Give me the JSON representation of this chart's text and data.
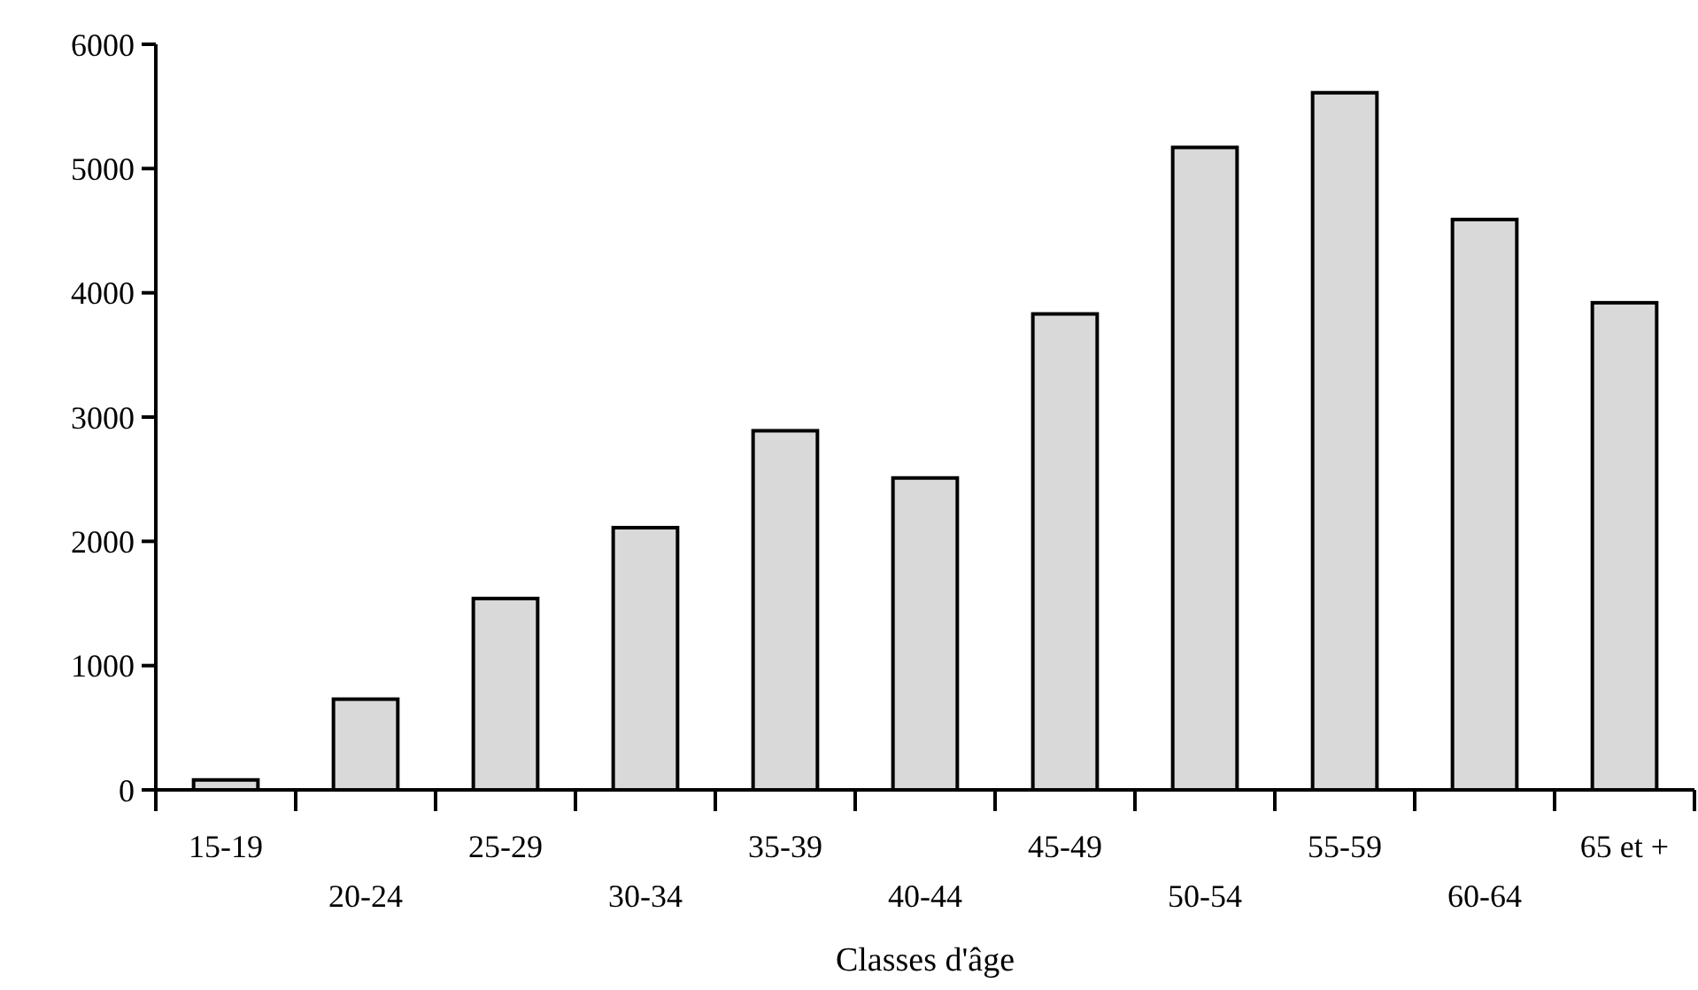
{
  "chart_data": {
    "type": "bar",
    "xlabel": "Classes d'âge",
    "categories": [
      "15-19",
      "20-24",
      "25-29",
      "30-34",
      "35-39",
      "40-44",
      "45-49",
      "50-54",
      "55-59",
      "60-64",
      "65 et +"
    ],
    "values": [
      80,
      730,
      1540,
      2110,
      2890,
      2510,
      3830,
      5170,
      5610,
      4590,
      3920
    ],
    "color": "#d9d9d9",
    "ylim": [
      0,
      6000
    ],
    "yticks": [
      0,
      1000,
      2000,
      3000,
      4000,
      5000,
      6000
    ],
    "grid": false
  }
}
